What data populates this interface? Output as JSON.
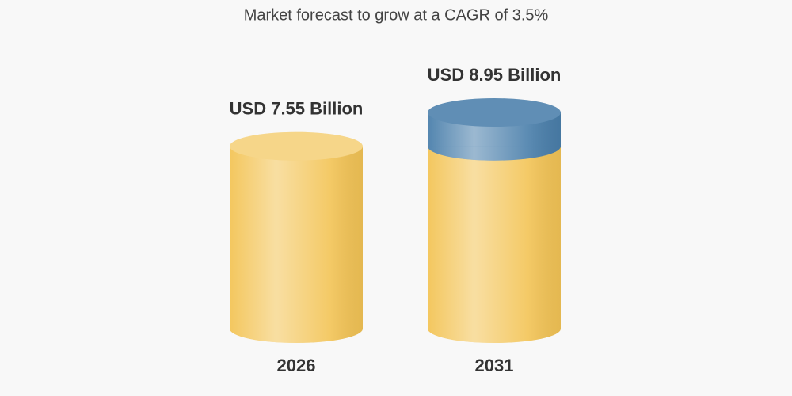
{
  "chart_data": {
    "type": "cylinder",
    "title": "Market forecast to grow at a CAGR of 3.5%",
    "categories": [
      "2026",
      "2031"
    ],
    "values": [
      7.55,
      8.95
    ],
    "value_labels": [
      "USD 7.55 Billion",
      "USD 8.95 Billion"
    ],
    "color": "#f3c456",
    "growth_color": "#4a7fab"
  }
}
